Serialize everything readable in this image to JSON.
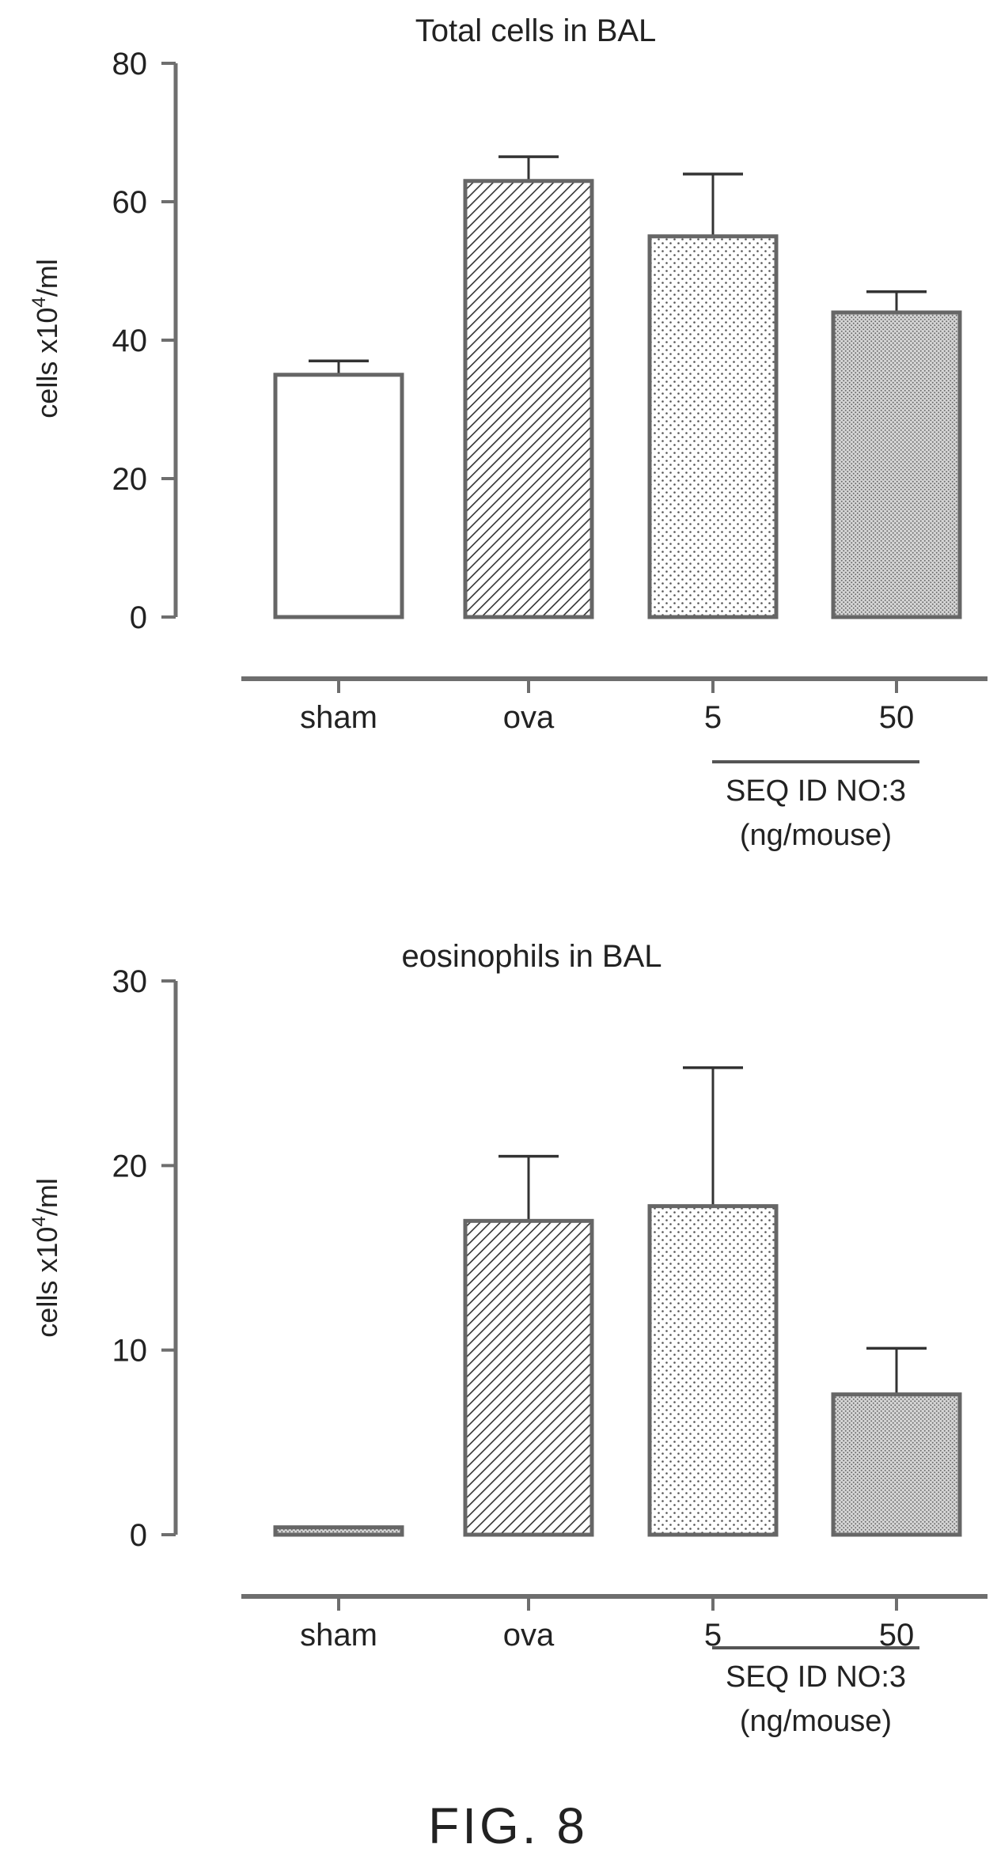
{
  "figure_label": "FIG. 8",
  "colors": {
    "ink": "#222222",
    "axis": "#6e6e6e",
    "fill_hatch": "#333333"
  },
  "chart_data": [
    {
      "type": "bar",
      "title": "Total cells in BAL",
      "ylabel_main": "cells x10",
      "ylabel_sup": "4",
      "ylabel_tail": "/ml",
      "ylim": [
        0,
        80
      ],
      "yticks": [
        0,
        20,
        40,
        60,
        80
      ],
      "categories": [
        "sham",
        "ova",
        "5",
        "50"
      ],
      "values": [
        35,
        63,
        55,
        44
      ],
      "errors": [
        2,
        3.5,
        9,
        3
      ],
      "fills": [
        "open",
        "diagonal-hatch",
        "sparse-dots",
        "dense-dots"
      ],
      "group_label_line1": "SEQ ID NO:3",
      "group_label_line2": "(ng/mouse)",
      "grid": false,
      "legend": "none"
    },
    {
      "type": "bar",
      "title": "eosinophils in BAL",
      "ylabel_main": "cells x10",
      "ylabel_sup": "4",
      "ylabel_tail": "/ml",
      "ylim": [
        0,
        30
      ],
      "yticks": [
        0,
        10,
        20,
        30
      ],
      "categories": [
        "sham",
        "ova",
        "5",
        "50"
      ],
      "values": [
        0.4,
        17,
        17.8,
        7.6
      ],
      "errors": [
        0,
        3.5,
        7.5,
        2.5
      ],
      "fills": [
        "dense-dots",
        "diagonal-hatch",
        "sparse-dots",
        "dense-dots"
      ],
      "group_label_line1": "SEQ ID NO:3",
      "group_label_line2": "(ng/mouse)",
      "grid": false,
      "legend": "none"
    }
  ]
}
